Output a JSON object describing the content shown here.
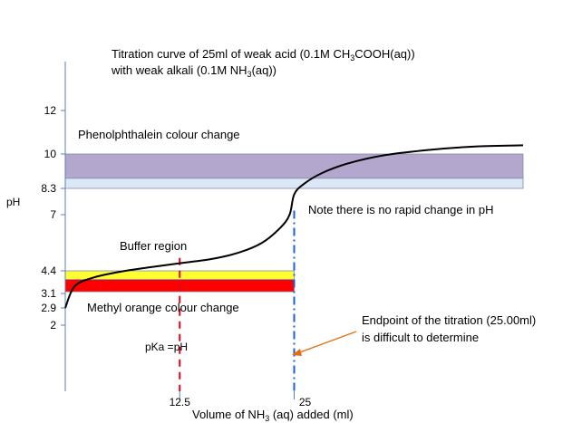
{
  "chart_data": {
    "type": "line",
    "title": {
      "line1": {
        "pre": "Titration curve of 25ml of weak acid (0.1M CH",
        "sub": "3",
        "post": "COOH(aq))"
      },
      "line2": {
        "pre": "with weak alkali (0.1M NH",
        "sub": "3",
        "post": "(aq))"
      }
    },
    "ylabel": "pH",
    "xlabel": {
      "pre": "Volume of NH",
      "sub": "3",
      "post": " (aq) added (ml)"
    },
    "y_ticks": [
      {
        "value": 12,
        "label": "12"
      },
      {
        "value": 10,
        "label": "10"
      },
      {
        "value": 8.3,
        "label": "8.3"
      },
      {
        "value": 7,
        "label": "7"
      },
      {
        "value": 4.4,
        "label": "4.4"
      },
      {
        "value": 3.1,
        "label": "3.1"
      },
      {
        "value": 2.9,
        "label": "2.9"
      },
      {
        "value": 2,
        "label": "2"
      }
    ],
    "x_ticks": [
      {
        "value": 12.5,
        "label": "12.5"
      },
      {
        "value": 25,
        "label": "25"
      }
    ],
    "xlim": [
      0,
      50
    ],
    "ylim": [
      0,
      14
    ],
    "bands": [
      {
        "name": "phenolphthalein-band-upper",
        "y_from": 8.8,
        "y_to": 10,
        "color": "#b4a7cd"
      },
      {
        "name": "phenolphthalein-band-lower",
        "y_from": 8.3,
        "y_to": 8.8,
        "color": "#dde8f6"
      },
      {
        "name": "methyl-orange-band-yellow",
        "y_from": 3.9,
        "y_to": 4.4,
        "color": "#ffff33",
        "x_to": 25
      },
      {
        "name": "methyl-orange-band-red",
        "y_from": 3.2,
        "y_to": 3.9,
        "color": "#ff0000",
        "x_to": 25
      }
    ],
    "curve": {
      "color": "#000000",
      "points": [
        [
          0,
          2.9
        ],
        [
          1,
          3.5
        ],
        [
          3,
          4.0
        ],
        [
          6,
          4.35
        ],
        [
          9,
          4.55
        ],
        [
          12.5,
          4.75
        ],
        [
          16,
          4.95
        ],
        [
          19,
          5.25
        ],
        [
          21.5,
          5.7
        ],
        [
          23.5,
          6.4
        ],
        [
          24.5,
          7.0
        ],
        [
          25,
          8.0
        ],
        [
          26,
          8.5
        ],
        [
          28,
          9.05
        ],
        [
          31,
          9.55
        ],
        [
          35,
          9.95
        ],
        [
          40,
          10.2
        ],
        [
          45,
          10.35
        ],
        [
          50,
          10.4
        ]
      ]
    },
    "vertical_lines": [
      {
        "name": "half-equivalence-line",
        "x": 12.5,
        "y_from": 0,
        "y_to": 5,
        "color": "#e8001c",
        "style": "dashed"
      },
      {
        "name": "equivalence-line",
        "x": 25,
        "y_from": 0,
        "y_to": 7.2,
        "color": "#1f5fd6",
        "style": "dash-dot"
      }
    ],
    "annotations": {
      "phenolphthalein": "Phenolphthalein colour change",
      "methyl_orange": "Methyl orange colour change",
      "buffer": "Buffer region",
      "pka": "pKa =pH",
      "no_rapid_change": "Note there is no rapid change in pH",
      "endpoint_line1": "Endpoint of the titration (25.00ml)",
      "endpoint_line2": "is difficult to determine"
    },
    "arrow_color": "#e46c0a"
  }
}
